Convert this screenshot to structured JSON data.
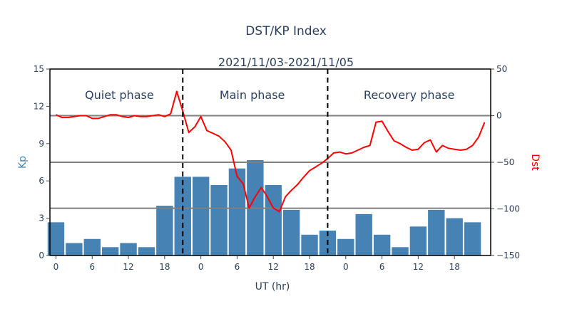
{
  "chart_data": {
    "type": "bar+line",
    "title": "DST/KP Index",
    "subtitle": "2021/11/03-2021/11/05",
    "xlabel": "UT (hr)",
    "ylabel_left": "Kp",
    "ylabel_right": "Dst",
    "x_ticks": [
      "0",
      "6",
      "12",
      "18",
      "0",
      "6",
      "12",
      "18",
      "0",
      "6",
      "12",
      "18"
    ],
    "x_range": [
      -1,
      72
    ],
    "ylim_left": [
      0,
      15
    ],
    "y_ticks_left": [
      "0",
      "3",
      "6",
      "9",
      "12",
      "15"
    ],
    "ylim_right": [
      -150,
      50
    ],
    "y_ticks_right": [
      "−150",
      "−100",
      "−50",
      "0",
      "50"
    ],
    "colors": {
      "kp_bars": "#4682b4",
      "dst_line": "#ff0000",
      "ylabel_left": "#4682b4",
      "ylabel_right": "#ff0000"
    },
    "kp_series": {
      "name": "Kp",
      "bar_width_hours": 3,
      "x": [
        0,
        3,
        6,
        9,
        12,
        15,
        18,
        21,
        24,
        27,
        30,
        33,
        36,
        39,
        42,
        45,
        48,
        51,
        54,
        57,
        60,
        63,
        66,
        69
      ],
      "values": [
        2.67,
        1.0,
        1.33,
        0.67,
        1.0,
        0.67,
        4.0,
        6.33,
        6.33,
        5.67,
        7.0,
        7.67,
        5.67,
        3.67,
        1.67,
        2.0,
        1.33,
        3.33,
        1.67,
        0.67,
        2.33,
        3.67,
        3.0,
        2.67
      ]
    },
    "dst_series": {
      "name": "Dst",
      "x": [
        0,
        1,
        2,
        3,
        4,
        5,
        6,
        7,
        8,
        9,
        10,
        11,
        12,
        13,
        14,
        15,
        16,
        17,
        18,
        19,
        20,
        21,
        22,
        23,
        24,
        25,
        26,
        27,
        28,
        29,
        30,
        31,
        32,
        33,
        34,
        35,
        36,
        37,
        38,
        39,
        40,
        41,
        42,
        43,
        44,
        45,
        46,
        47,
        48,
        49,
        50,
        51,
        52,
        53,
        54,
        55,
        56,
        57,
        58,
        59,
        60,
        61,
        62,
        63,
        64,
        65,
        66,
        67,
        68,
        69,
        70,
        71
      ],
      "values": [
        1,
        -2,
        -2,
        -1,
        0,
        0,
        -3,
        -3,
        -1,
        1,
        1,
        -1,
        -2,
        0,
        -1,
        -1,
        0,
        1,
        -1,
        2,
        26,
        5,
        -18,
        -12,
        -1,
        -16,
        -19,
        -22,
        -28,
        -37,
        -65,
        -73,
        -99,
        -87,
        -77,
        -87,
        -99,
        -103,
        -87,
        -80,
        -74,
        -66,
        -59,
        -55,
        -51,
        -46,
        -40,
        -39,
        -41,
        -40,
        -37,
        -34,
        -32,
        -7,
        -6,
        -17,
        -27,
        -30,
        -34,
        -37,
        -36,
        -29,
        -26,
        -39,
        -32,
        -35,
        -36,
        -37,
        -36,
        -32,
        -23,
        -7
      ]
    },
    "reference_lines": {
      "kp_levels": [
        3.8,
        7.5,
        11.25
      ],
      "dst_levels": [
        0,
        -50,
        -100
      ]
    },
    "phase_boundaries_x": [
      21,
      45
    ],
    "phases": [
      "Quiet phase",
      "Main phase",
      "Recovery phase"
    ],
    "legend": "none",
    "grid": false
  }
}
